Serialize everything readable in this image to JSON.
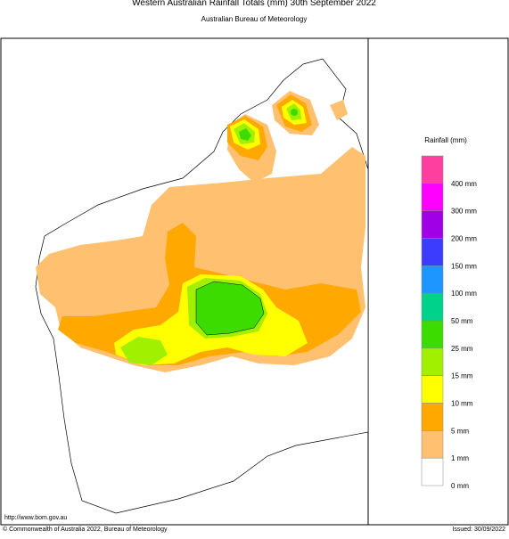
{
  "header": {
    "title": "Western Australian Rainfall Totals (mm) 30th September 2022",
    "subtitle": "Australian Bureau of Meteorology"
  },
  "legend": {
    "title": "Rainfall (mm)",
    "boxes": [
      "#ff3fa0",
      "#ff00ff",
      "#a000e6",
      "#3c3cff",
      "#1e96ff",
      "#00d28c",
      "#3cdc00",
      "#a0f000",
      "#ffff00",
      "#ffa800",
      "#ffc070",
      "#ffffff"
    ],
    "labels": [
      "400 mm",
      "300 mm",
      "200 mm",
      "150 mm",
      "100 mm",
      "50 mm",
      "25 mm",
      "15 mm",
      "10 mm",
      "5 mm",
      "1 mm",
      "0 mm"
    ]
  },
  "footer": {
    "url": "http://www.bom.gov.au",
    "copyright": "© Commonwealth of Australia 2022, Bureau of Meteorology",
    "issued": "Issued: 30/09/2022"
  }
}
